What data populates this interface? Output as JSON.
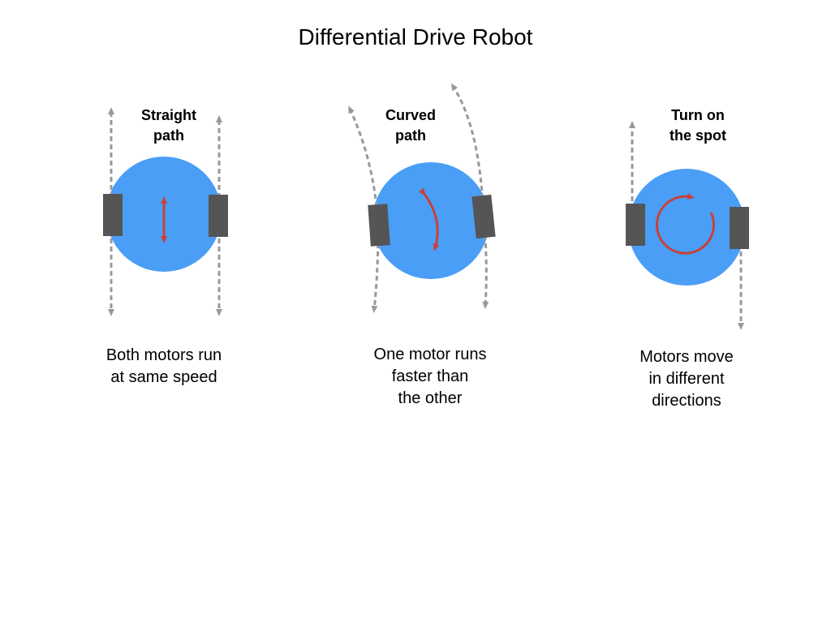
{
  "title": "Differential Drive Robot",
  "colors": {
    "body": "#4A9EF5",
    "wheel": "#555555",
    "motion_arrow": "#C9403B",
    "path_arrow": "#999999"
  },
  "panels": [
    {
      "label_lines": [
        "Straight",
        "path"
      ],
      "caption_lines": [
        "Both motors run",
        "at same speed"
      ]
    },
    {
      "label_lines": [
        "Curved",
        "path"
      ],
      "caption_lines": [
        "One motor runs",
        "faster than",
        "the other"
      ]
    },
    {
      "label_lines": [
        "Turn on",
        "the spot"
      ],
      "caption_lines": [
        "Motors move",
        "in different",
        "directions"
      ]
    }
  ]
}
